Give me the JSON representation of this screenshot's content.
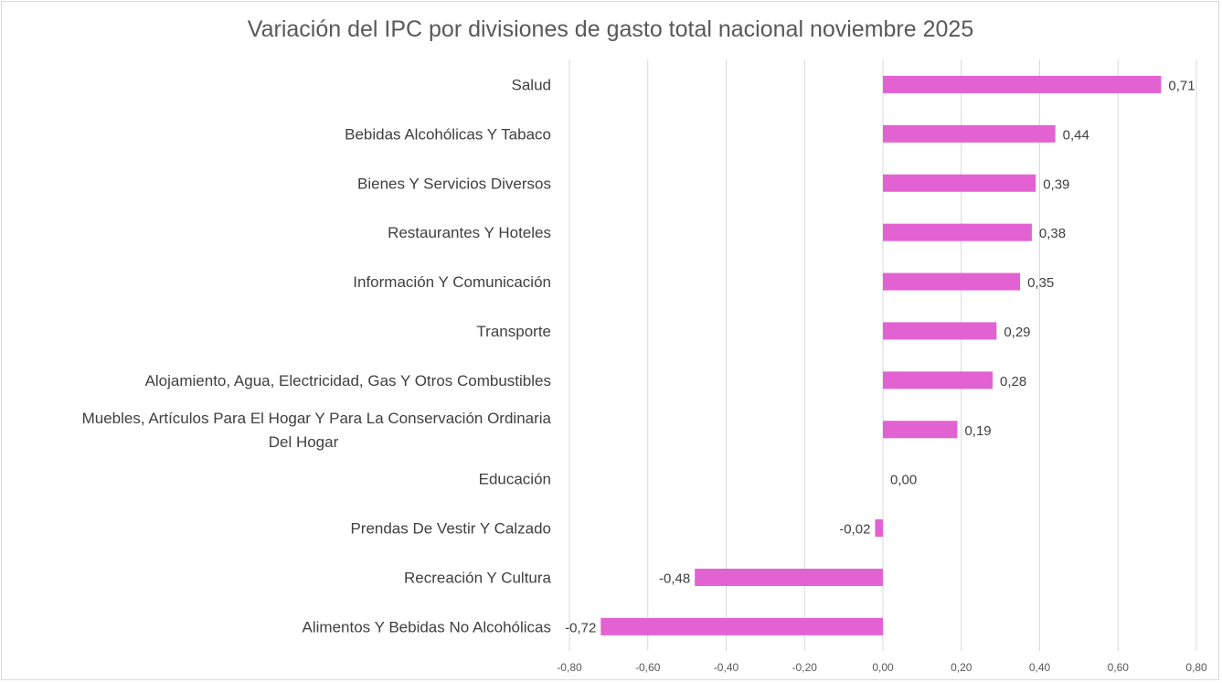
{
  "chart_data": {
    "type": "bar",
    "orientation": "horizontal",
    "title": "Variación del IPC por divisiones de gasto total nacional noviembre 2025",
    "categories": [
      "Salud",
      "Bebidas Alcohólicas Y Tabaco",
      "Bienes Y Servicios Diversos",
      "Restaurantes Y Hoteles",
      "Información Y Comunicación",
      "Transporte",
      "Alojamiento, Agua, Electricidad, Gas Y Otros Combustibles",
      "Muebles, Artículos Para El Hogar Y Para La Conservación Ordinaria Del Hogar",
      "Educación",
      "Prendas De Vestir Y Calzado",
      "Recreación Y Cultura",
      "Alimentos Y Bebidas No Alcohólicas"
    ],
    "values": [
      0.71,
      0.44,
      0.39,
      0.38,
      0.35,
      0.29,
      0.28,
      0.19,
      0.0,
      -0.02,
      -0.48,
      -0.72
    ],
    "data_labels": [
      "0,71",
      "0,44",
      "0,39",
      "0,38",
      "0,35",
      "0,29",
      "0,28",
      "0,19",
      "0,00",
      "-0,02",
      "-0,48",
      "-0,72"
    ],
    "xlim": [
      -0.8,
      0.8
    ],
    "xticks": [
      -0.8,
      -0.6,
      -0.4,
      -0.2,
      0,
      0.2,
      0.4,
      0.6,
      0.8
    ],
    "xtick_labels": [
      "-0,80",
      "-0,60",
      "-0,40",
      "-0,20",
      "0,00",
      "0,20",
      "0,40",
      "0,60",
      "0,80"
    ],
    "xlabel": "",
    "ylabel": "",
    "grid": true,
    "legend": "none",
    "bar_color": "#e262d2"
  }
}
